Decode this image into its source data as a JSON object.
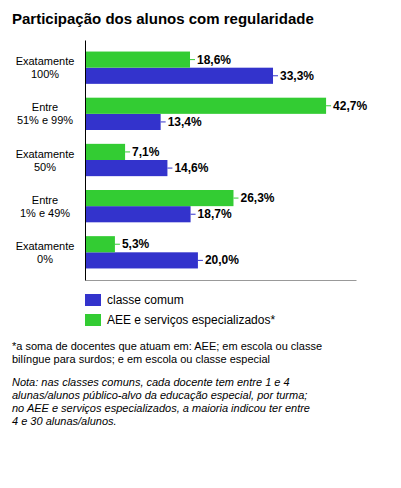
{
  "chart_data": {
    "type": "bar",
    "orientation": "horizontal",
    "title": "Participação dos alunos com regularidade",
    "categories": [
      "Exatamente\n100%",
      "Entre\n51% e 99%",
      "Exatamente\n50%",
      "Entre\n1% e 49%",
      "Exatamente\n0%"
    ],
    "series": [
      {
        "name": "classe comum",
        "color": "#3333cc",
        "values": [
          33.3,
          13.4,
          14.6,
          18.7,
          20.0
        ],
        "value_labels": [
          "33,3%",
          "13,4%",
          "14,6%",
          "18,7%",
          "20,0%"
        ]
      },
      {
        "name": "AEE e serviços especializados*",
        "color": "#33cc33",
        "values": [
          18.6,
          42.7,
          7.1,
          26.3,
          5.3
        ],
        "value_labels": [
          "18,6%",
          "42,7%",
          "7,1%",
          "26,3%",
          "5,3%"
        ]
      }
    ],
    "xlim": [
      0,
      48
    ],
    "data_labels": true,
    "tick_labels": "y",
    "grid": false,
    "legend": "bottom",
    "annotations": [
      "*a soma de docentes que atuam em: AEE; em escola ou classe\nbilíngue para surdos; e em escola ou classe especial",
      "Nota: nas classes comuns, cada docente tem entre 1 e 4\nalunas/alunos público-alvo da educação especial, por turma;\nno AEE e serviços especializados, a maioria indicou ter entre\n4 e 30 alunas/alunos."
    ]
  }
}
